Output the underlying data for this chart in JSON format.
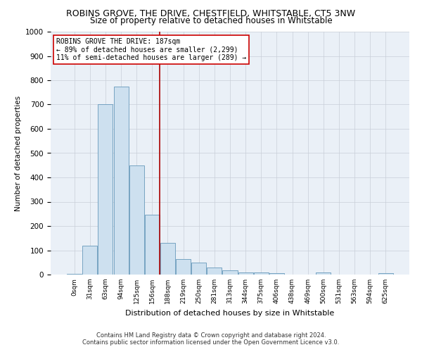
{
  "title": "ROBINS GROVE, THE DRIVE, CHESTFIELD, WHITSTABLE, CT5 3NW",
  "subtitle": "Size of property relative to detached houses in Whitstable",
  "xlabel": "Distribution of detached houses by size in Whitstable",
  "ylabel": "Number of detached properties",
  "bar_color": "#cde0ef",
  "bar_edge_color": "#6699bb",
  "categories": [
    "0sqm",
    "31sqm",
    "63sqm",
    "94sqm",
    "125sqm",
    "156sqm",
    "188sqm",
    "219sqm",
    "250sqm",
    "281sqm",
    "313sqm",
    "344sqm",
    "375sqm",
    "406sqm",
    "438sqm",
    "469sqm",
    "500sqm",
    "531sqm",
    "563sqm",
    "594sqm",
    "625sqm"
  ],
  "values": [
    2,
    120,
    700,
    775,
    450,
    245,
    130,
    65,
    50,
    28,
    18,
    10,
    10,
    5,
    0,
    0,
    8,
    0,
    0,
    0,
    5
  ],
  "property_bin_index": 6,
  "property_label": "ROBINS GROVE THE DRIVE: 187sqm",
  "annotation_line1": "← 89% of detached houses are smaller (2,299)",
  "annotation_line2": "11% of semi-detached houses are larger (289) →",
  "ylim": [
    0,
    1000
  ],
  "yticks": [
    0,
    100,
    200,
    300,
    400,
    500,
    600,
    700,
    800,
    900,
    1000
  ],
  "footer1": "Contains HM Land Registry data © Crown copyright and database right 2024.",
  "footer2": "Contains public sector information licensed under the Open Government Licence v3.0.",
  "plot_bg_color": "#eaf0f7",
  "grid_color": "#c8ced8"
}
